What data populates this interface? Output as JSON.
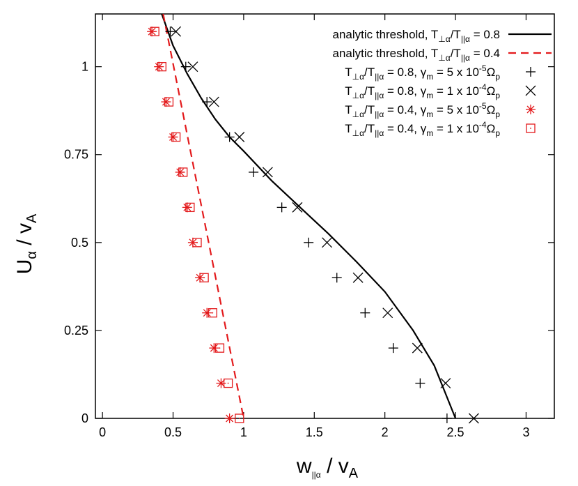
{
  "chart_data": {
    "type": "scatter",
    "title": "",
    "xlabel": {
      "base": "w",
      "sub": "||α",
      "rest": " / v",
      "sub2": "A"
    },
    "ylabel": {
      "base": "U",
      "sub": "α",
      "rest": " / v",
      "sub2": "A"
    },
    "xlim": [
      -0.05,
      3.2
    ],
    "ylim": [
      0,
      1.15
    ],
    "xticks": [
      0,
      0.5,
      1,
      1.5,
      2,
      2.5,
      3
    ],
    "xtick_labels": [
      "0",
      "0.5",
      "1",
      "1.5",
      "2",
      "2.5",
      "3"
    ],
    "yticks": [
      0,
      0.25,
      0.5,
      0.75,
      1
    ],
    "ytick_labels": [
      "0",
      "0.25",
      "0.5",
      "0.75",
      "1"
    ],
    "grid": false,
    "legend_position": "top-right",
    "colors": {
      "black": "#000000",
      "red": "#e31a1c"
    },
    "series": [
      {
        "name": {
          "p1": "analytic threshold, T",
          "s1": "⊥α",
          "p2": "/T",
          "s2": "||α",
          "p3": " = 0.8"
        },
        "kind": "line",
        "style": "solid",
        "color": "#000000",
        "points": [
          [
            0.42,
            1.15
          ],
          [
            0.5,
            1.06
          ],
          [
            0.6,
            0.98
          ],
          [
            0.7,
            0.91
          ],
          [
            0.8,
            0.85
          ],
          [
            0.9,
            0.8
          ],
          [
            1.0,
            0.76
          ],
          [
            1.2,
            0.675
          ],
          [
            1.4,
            0.6
          ],
          [
            1.6,
            0.525
          ],
          [
            1.8,
            0.445
          ],
          [
            2.0,
            0.36
          ],
          [
            2.2,
            0.25
          ],
          [
            2.35,
            0.15
          ],
          [
            2.5,
            0.0
          ]
        ]
      },
      {
        "name": {
          "p1": "analytic threshold, T",
          "s1": "⊥α",
          "p2": "/T",
          "s2": "||α",
          "p3": " = 0.4"
        },
        "kind": "line",
        "style": "dashed",
        "color": "#e31a1c",
        "points": [
          [
            0.43,
            1.15
          ],
          [
            1.0,
            0.0
          ]
        ]
      },
      {
        "name": {
          "p1": "T",
          "s1": "⊥α",
          "p2": "/T",
          "s2": "||α",
          "p3": " = 0.8, γ",
          "s3": "m",
          "p4": " = 5 x 10",
          "sup": "-5",
          "p5": "Ω",
          "s4": "p"
        },
        "kind": "marker",
        "marker": "plus",
        "color": "#000000",
        "points": [
          [
            0.48,
            1.1
          ],
          [
            0.59,
            1.0
          ],
          [
            0.74,
            0.9
          ],
          [
            0.9,
            0.8
          ],
          [
            1.07,
            0.7
          ],
          [
            1.27,
            0.6
          ],
          [
            1.46,
            0.5
          ],
          [
            1.66,
            0.4
          ],
          [
            1.86,
            0.3
          ],
          [
            2.06,
            0.2
          ],
          [
            2.25,
            0.1
          ],
          [
            2.44,
            0.0
          ]
        ]
      },
      {
        "name": {
          "p1": "T",
          "s1": "⊥α",
          "p2": "/T",
          "s2": "||α",
          "p3": " = 0.8, γ",
          "s3": "m",
          "p4": " = 1 x 10",
          "sup": "-4",
          "p5": "Ω",
          "s4": "p"
        },
        "kind": "marker",
        "marker": "cross",
        "color": "#000000",
        "points": [
          [
            0.52,
            1.1
          ],
          [
            0.64,
            1.0
          ],
          [
            0.79,
            0.9
          ],
          [
            0.97,
            0.8
          ],
          [
            1.17,
            0.7
          ],
          [
            1.38,
            0.6
          ],
          [
            1.59,
            0.5
          ],
          [
            1.81,
            0.4
          ],
          [
            2.02,
            0.3
          ],
          [
            2.23,
            0.2
          ],
          [
            2.43,
            0.1
          ],
          [
            2.63,
            0.0
          ]
        ]
      },
      {
        "name": {
          "p1": "T",
          "s1": "⊥α",
          "p2": "/T",
          "s2": "||α",
          "p3": " = 0.4, γ",
          "s3": "m",
          "p4": " = 5 x 10",
          "sup": "-5",
          "p5": "Ω",
          "s4": "p"
        },
        "kind": "marker",
        "marker": "star",
        "color": "#e31a1c",
        "points": [
          [
            0.35,
            1.1
          ],
          [
            0.4,
            1.0
          ],
          [
            0.45,
            0.9
          ],
          [
            0.5,
            0.8
          ],
          [
            0.55,
            0.7
          ],
          [
            0.6,
            0.6
          ],
          [
            0.64,
            0.5
          ],
          [
            0.69,
            0.4
          ],
          [
            0.74,
            0.3
          ],
          [
            0.79,
            0.2
          ],
          [
            0.84,
            0.1
          ],
          [
            0.9,
            0.0
          ]
        ]
      },
      {
        "name": {
          "p1": "T",
          "s1": "⊥α",
          "p2": "/T",
          "s2": "||α",
          "p3": " = 0.4, γ",
          "s3": "m",
          "p4": " = 1 x 10",
          "sup": "-4",
          "p5": "Ω",
          "s4": "p"
        },
        "kind": "marker",
        "marker": "square",
        "color": "#e31a1c",
        "points": [
          [
            0.37,
            1.1
          ],
          [
            0.42,
            1.0
          ],
          [
            0.47,
            0.9
          ],
          [
            0.52,
            0.8
          ],
          [
            0.57,
            0.7
          ],
          [
            0.62,
            0.6
          ],
          [
            0.67,
            0.5
          ],
          [
            0.72,
            0.4
          ],
          [
            0.78,
            0.3
          ],
          [
            0.83,
            0.2
          ],
          [
            0.89,
            0.1
          ],
          [
            0.97,
            0.0
          ]
        ]
      }
    ]
  }
}
